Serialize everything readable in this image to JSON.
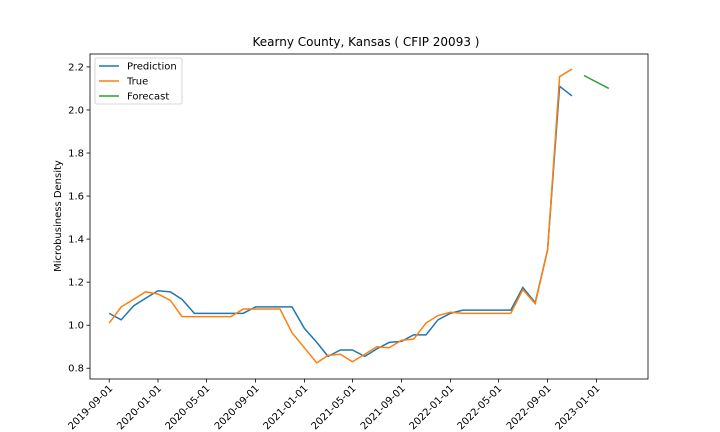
{
  "chart_data": {
    "type": "line",
    "title": "Kearny County, Kansas ( CFIP 20093 )",
    "xlabel": "",
    "ylabel": "Microbusiness Density",
    "ylim": [
      0.75,
      2.26
    ],
    "yticks": [
      0.8,
      1.0,
      1.2,
      1.4,
      1.6,
      1.8,
      2.0,
      2.2
    ],
    "ytick_labels": [
      "0.8",
      "1.0",
      "1.2",
      "1.4",
      "1.6",
      "1.8",
      "2.0",
      "2.2"
    ],
    "xlim": [
      "2019-07-15",
      "2023-05-10"
    ],
    "xticks": [
      "2019-09-01",
      "2020-01-01",
      "2020-05-01",
      "2020-09-01",
      "2021-01-01",
      "2021-05-01",
      "2021-09-01",
      "2022-01-01",
      "2022-05-01",
      "2022-09-01",
      "2023-01-01"
    ],
    "grid": false,
    "legend_position": "top-left",
    "series": [
      {
        "name": "Prediction",
        "color": "#1f77b4",
        "x": [
          "2019-09-01",
          "2019-10-01",
          "2019-11-01",
          "2019-12-01",
          "2020-01-01",
          "2020-02-01",
          "2020-03-01",
          "2020-04-01",
          "2020-05-01",
          "2020-06-01",
          "2020-07-01",
          "2020-08-01",
          "2020-09-01",
          "2020-10-01",
          "2020-11-01",
          "2020-12-01",
          "2021-01-01",
          "2021-02-01",
          "2021-03-01",
          "2021-04-01",
          "2021-05-01",
          "2021-06-01",
          "2021-07-01",
          "2021-08-01",
          "2021-09-01",
          "2021-10-01",
          "2021-11-01",
          "2021-12-01",
          "2022-01-01",
          "2022-02-01",
          "2022-03-01",
          "2022-04-01",
          "2022-05-01",
          "2022-06-01",
          "2022-07-01",
          "2022-08-01",
          "2022-09-01",
          "2022-10-01",
          "2022-11-01"
        ],
        "y": [
          1.055,
          1.025,
          1.09,
          1.125,
          1.16,
          1.155,
          1.12,
          1.055,
          1.055,
          1.055,
          1.055,
          1.055,
          1.085,
          1.085,
          1.085,
          1.085,
          0.985,
          0.92,
          0.855,
          0.885,
          0.885,
          0.855,
          0.89,
          0.92,
          0.925,
          0.955,
          0.955,
          1.025,
          1.055,
          1.07,
          1.07,
          1.07,
          1.07,
          1.07,
          1.175,
          1.105,
          1.35,
          2.11,
          2.065
        ]
      },
      {
        "name": "True",
        "color": "#ff7f0e",
        "x": [
          "2019-09-01",
          "2019-10-01",
          "2019-11-01",
          "2019-12-01",
          "2020-01-01",
          "2020-02-01",
          "2020-03-01",
          "2020-04-01",
          "2020-05-01",
          "2020-06-01",
          "2020-07-01",
          "2020-08-01",
          "2020-09-01",
          "2020-10-01",
          "2020-11-01",
          "2020-12-01",
          "2021-01-01",
          "2021-02-01",
          "2021-03-01",
          "2021-04-01",
          "2021-05-01",
          "2021-06-01",
          "2021-07-01",
          "2021-08-01",
          "2021-09-01",
          "2021-10-01",
          "2021-11-01",
          "2021-12-01",
          "2022-01-01",
          "2022-02-01",
          "2022-03-01",
          "2022-04-01",
          "2022-05-01",
          "2022-06-01",
          "2022-07-01",
          "2022-08-01",
          "2022-09-01",
          "2022-10-01",
          "2022-11-01"
        ],
        "y": [
          1.01,
          1.085,
          1.12,
          1.155,
          1.145,
          1.115,
          1.04,
          1.04,
          1.04,
          1.04,
          1.04,
          1.075,
          1.075,
          1.075,
          1.075,
          0.965,
          0.895,
          0.825,
          0.86,
          0.865,
          0.83,
          0.865,
          0.9,
          0.895,
          0.93,
          0.935,
          1.01,
          1.045,
          1.06,
          1.055,
          1.055,
          1.055,
          1.055,
          1.055,
          1.165,
          1.1,
          1.35,
          2.155,
          2.19
        ]
      },
      {
        "name": "Forecast",
        "color": "#2ca02c",
        "x": [
          "2022-12-01",
          "2023-01-01",
          "2023-02-01"
        ],
        "y": [
          2.16,
          2.13,
          2.1
        ]
      }
    ]
  }
}
